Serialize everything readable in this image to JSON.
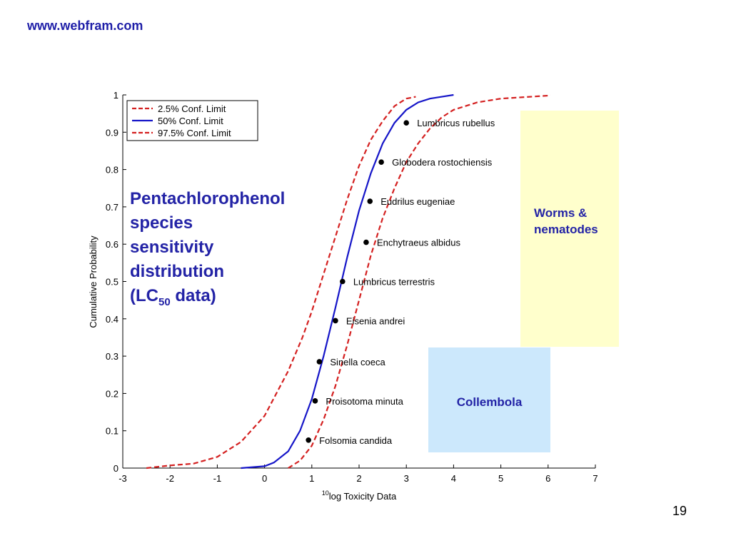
{
  "header": {
    "website": "www.webfram.com"
  },
  "slide": {
    "page_number": "19"
  },
  "annotation": {
    "lines": [
      "Pentachlorophenol",
      "species",
      "sensitivity",
      "distribution"
    ],
    "last_prefix": "(LC",
    "last_sub": "50",
    "last_suffix": " data)"
  },
  "groups": {
    "worms": "Worms & nematodes",
    "collembola": "Collembola",
    "worms_color": "#ffffcc",
    "collembola_color": "#cce8fc"
  },
  "chart_data": {
    "type": "line",
    "xlabel_sup": "10",
    "xlabel": "log Toxicity Data",
    "ylabel": "Cumulative Probability",
    "xlim": [
      -3,
      7
    ],
    "ylim": [
      0,
      1
    ],
    "xticks": [
      "-3",
      "-2",
      "-1",
      "0",
      "1",
      "2",
      "3",
      "4",
      "5",
      "6",
      "7"
    ],
    "yticks": [
      "0",
      "0.1",
      "0.2",
      "0.3",
      "0.4",
      "0.5",
      "0.6",
      "0.7",
      "0.8",
      "0.9",
      "1"
    ],
    "legend": {
      "position": "top-left",
      "entries": [
        {
          "label": "2.5% Conf. Limit",
          "color": "#d42020",
          "style": "dashed"
        },
        {
          "label": "50% Conf. Limit",
          "color": "#1515c8",
          "style": "solid"
        },
        {
          "label": "97.5% Conf. Limit",
          "color": "#d42020",
          "style": "dashed"
        }
      ]
    },
    "series": [
      {
        "name": "2.5% Conf. Limit",
        "color": "#d42020",
        "style": "dashed",
        "x": [
          -2.5,
          -2.0,
          -1.5,
          -1.0,
          -0.5,
          0.0,
          0.5,
          0.8,
          1.0,
          1.25,
          1.5,
          1.75,
          2.0,
          2.25,
          2.5,
          2.75,
          3.0,
          3.2
        ],
        "y": [
          0.0,
          0.007,
          0.012,
          0.03,
          0.07,
          0.14,
          0.26,
          0.35,
          0.42,
          0.52,
          0.62,
          0.72,
          0.81,
          0.88,
          0.93,
          0.97,
          0.99,
          0.995
        ]
      },
      {
        "name": "50% Conf. Limit",
        "color": "#1515c8",
        "style": "solid",
        "x": [
          -0.5,
          0.0,
          0.2,
          0.5,
          0.75,
          1.0,
          1.25,
          1.5,
          1.75,
          2.0,
          2.25,
          2.5,
          2.75,
          3.0,
          3.25,
          3.5,
          3.75,
          4.0
        ],
        "y": [
          0.0,
          0.005,
          0.015,
          0.045,
          0.1,
          0.185,
          0.3,
          0.43,
          0.565,
          0.69,
          0.79,
          0.87,
          0.925,
          0.96,
          0.98,
          0.99,
          0.995,
          1.0
        ]
      },
      {
        "name": "97.5% Conf. Limit",
        "color": "#d42020",
        "style": "dashed",
        "x": [
          0.5,
          0.75,
          1.0,
          1.25,
          1.5,
          1.75,
          2.0,
          2.25,
          2.5,
          2.75,
          3.0,
          3.25,
          3.5,
          3.75,
          4.0,
          4.5,
          5.0,
          6.0,
          6.05
        ],
        "y": [
          0.0,
          0.02,
          0.06,
          0.13,
          0.22,
          0.33,
          0.45,
          0.57,
          0.67,
          0.75,
          0.82,
          0.87,
          0.91,
          0.94,
          0.96,
          0.98,
          0.99,
          0.998,
          1.0
        ]
      }
    ],
    "points": [
      {
        "label": "Folsomia candida",
        "x": 0.93,
        "y": 0.075
      },
      {
        "label": "Proisotoma minuta",
        "x": 1.07,
        "y": 0.18
      },
      {
        "label": "Sinella coeca",
        "x": 1.16,
        "y": 0.285
      },
      {
        "label": "Eisenia andrei",
        "x": 1.5,
        "y": 0.395
      },
      {
        "label": "Lumbricus terrestris",
        "x": 1.65,
        "y": 0.5
      },
      {
        "label": "Enchytraeus albidus",
        "x": 2.15,
        "y": 0.605
      },
      {
        "label": "Eudrilus eugeniae",
        "x": 2.23,
        "y": 0.715
      },
      {
        "label": "Globodera rostochiensis",
        "x": 2.47,
        "y": 0.82
      },
      {
        "label": "Lumbricus rubellus",
        "x": 3.0,
        "y": 0.925
      }
    ]
  }
}
